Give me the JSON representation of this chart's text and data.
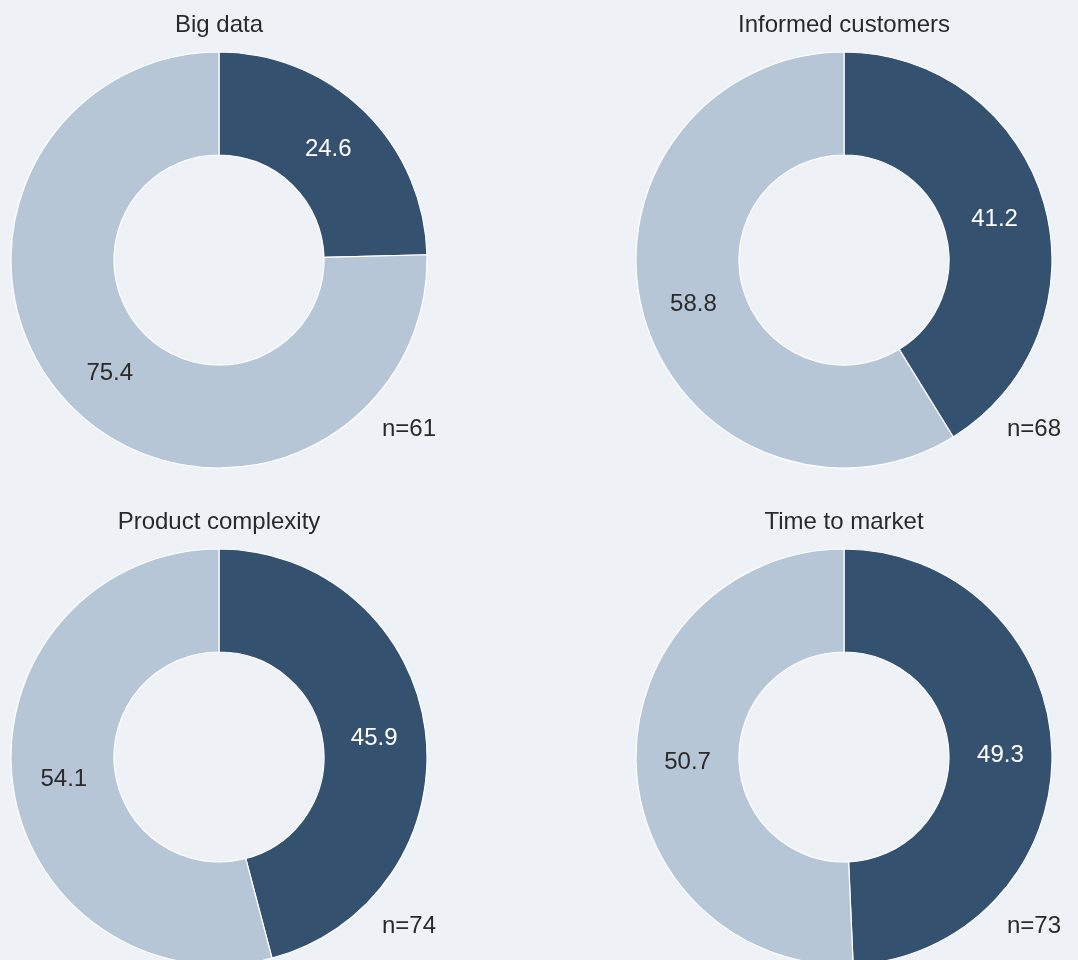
{
  "chart_data": [
    {
      "type": "donut",
      "title": "Big data",
      "categories": [
        null,
        null
      ],
      "values": [
        24.6,
        75.4
      ],
      "colors": [
        "#34526f",
        "#b7c6d6"
      ],
      "data_labels": true,
      "annotations": [
        "n=61"
      ]
    },
    {
      "type": "donut",
      "title": "Informed customers",
      "categories": [
        null,
        null
      ],
      "values": [
        41.2,
        58.8
      ],
      "colors": [
        "#34526f",
        "#b7c6d6"
      ],
      "data_labels": true,
      "annotations": [
        "n=68"
      ]
    },
    {
      "type": "donut",
      "title": "Product complexity",
      "categories": [
        null,
        null
      ],
      "values": [
        45.9,
        54.1
      ],
      "colors": [
        "#34526f",
        "#b7c6d6"
      ],
      "data_labels": true,
      "annotations": [
        "n=74"
      ]
    },
    {
      "type": "donut",
      "title": "Time to market",
      "categories": [
        null,
        null
      ],
      "values": [
        49.3,
        50.7
      ],
      "colors": [
        "#34526f",
        "#b7c6d6"
      ],
      "data_labels": true,
      "annotations": [
        "n=73"
      ]
    }
  ]
}
